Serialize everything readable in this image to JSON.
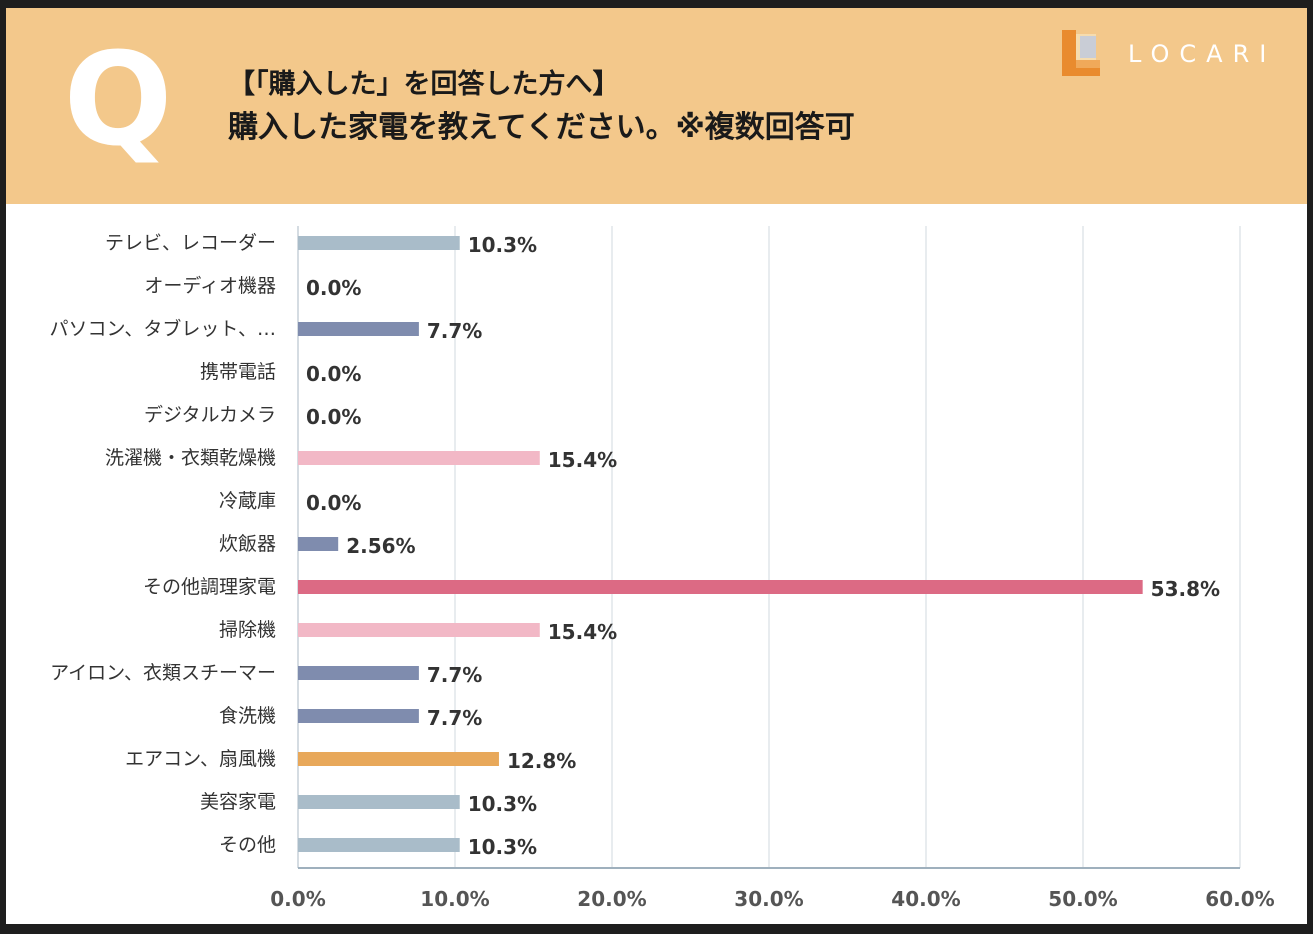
{
  "header": {
    "q_letter": "Q",
    "title_line1": "【「購入した」を回答した方へ】",
    "title_line2": "購入した家電を教えてください。※複数回答可",
    "logo_text": "LOCARI"
  },
  "colors": {
    "header_bg": "#f3c88b",
    "steel_blue": "#a9bcc9",
    "slate_blue": "#7f8cae",
    "light_pink": "#f2b8c6",
    "deep_pink": "#dc6a84",
    "orange": "#e8a85a"
  },
  "chart_data": {
    "type": "bar",
    "orientation": "horizontal",
    "title": "",
    "xlabel": "",
    "ylabel": "",
    "xlim": [
      0,
      60
    ],
    "x_ticks": [
      "0.0%",
      "10.0%",
      "20.0%",
      "30.0%",
      "40.0%",
      "50.0%",
      "60.0%"
    ],
    "grid": true,
    "categories": [
      "テレビ、レコーダー",
      "オーディオ機器",
      "パソコン、タブレット、…",
      "携帯電話",
      "デジタルカメラ",
      "洗濯機・衣類乾燥機",
      "冷蔵庫",
      "炊飯器",
      "その他調理家電",
      "掃除機",
      "アイロン、衣類スチーマー",
      "食洗機",
      "エアコン、扇風機",
      "美容家電",
      "その他"
    ],
    "values": [
      10.3,
      0.0,
      7.7,
      0.0,
      0.0,
      15.4,
      0.0,
      2.56,
      53.8,
      15.4,
      7.7,
      7.7,
      12.8,
      10.3,
      10.3
    ],
    "value_labels": [
      "10.3%",
      "0.0%",
      "7.7%",
      "0.0%",
      "0.0%",
      "15.4%",
      "0.0%",
      "2.56%",
      "53.8%",
      "15.4%",
      "7.7%",
      "7.7%",
      "12.8%",
      "10.3%",
      "10.3%"
    ],
    "bar_colors": [
      "#a9bcc9",
      "#a9bcc9",
      "#7f8cae",
      "#7f8cae",
      "#7f8cae",
      "#f2b8c6",
      "#7f8cae",
      "#7f8cae",
      "#dc6a84",
      "#f2b8c6",
      "#7f8cae",
      "#7f8cae",
      "#e8a85a",
      "#a9bcc9",
      "#a9bcc9"
    ]
  }
}
